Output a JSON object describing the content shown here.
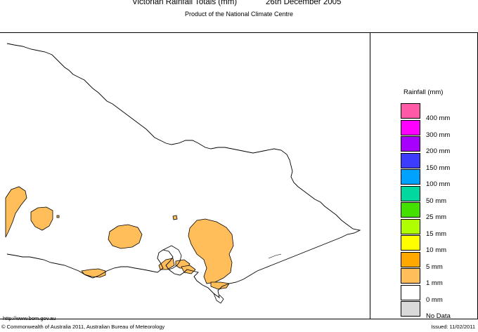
{
  "header": {
    "title": "Victorian Rainfall Totals (mm)",
    "date": "26th December 2005",
    "subtitle": "Product of the National Climate Centre"
  },
  "legend": {
    "title": "Rainfall (mm)",
    "items": [
      {
        "label": "400 mm",
        "color": "#ff5aa8"
      },
      {
        "label": "300 mm",
        "color": "#ff00ff"
      },
      {
        "label": "200 mm",
        "color": "#a800ff"
      },
      {
        "label": "150 mm",
        "color": "#3c3cff"
      },
      {
        "label": "100 mm",
        "color": "#00a2ff"
      },
      {
        "label": "50 mm",
        "color": "#00d8a0"
      },
      {
        "label": "25 mm",
        "color": "#44e000"
      },
      {
        "label": "15 mm",
        "color": "#b0ff00"
      },
      {
        "label": "10 mm",
        "color": "#ffff00"
      },
      {
        "label": "5 mm",
        "color": "#ffa800"
      },
      {
        "label": "1 mm",
        "color": "#ffbe5a"
      },
      {
        "label": "0 mm",
        "color": "#ffffff"
      },
      {
        "label": "No Data",
        "color": "#d9d9d9"
      }
    ]
  },
  "map": {
    "rain_fill_color": "#ffbe5a",
    "outline_color": "#000000"
  },
  "footer": {
    "url": "http://www.bom.gov.au",
    "copyright": "© Commonwealth of Australia 2011, Australian Bureau of Meteorology",
    "issued": "Issued: 11/02/2011"
  }
}
